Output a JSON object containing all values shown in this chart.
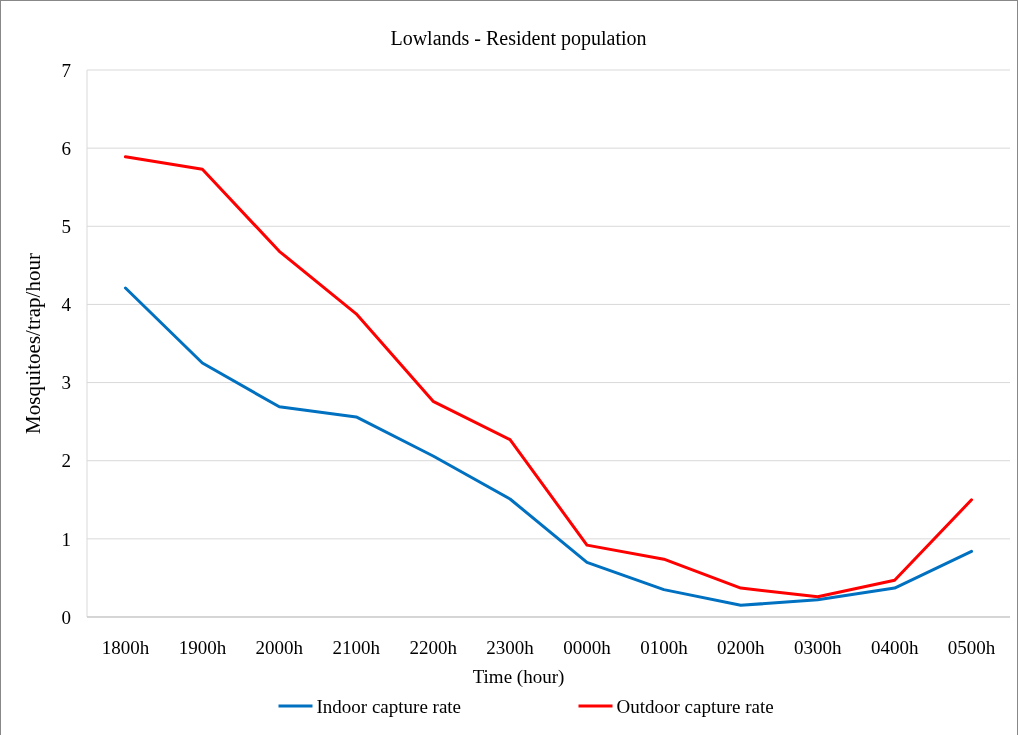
{
  "chart_data": {
    "type": "line",
    "title": "Lowlands - Resident population",
    "xlabel": "Time (hour)",
    "ylabel": "Mosquitoes/trap/hour",
    "categories": [
      "1800h",
      "1900h",
      "2000h",
      "2100h",
      "2200h",
      "2300h",
      "0000h",
      "0100h",
      "0200h",
      "0300h",
      "0400h",
      "0500h"
    ],
    "series": [
      {
        "name": "Indoor capture rate",
        "color": "#0070c0",
        "values": [
          4.21,
          3.25,
          2.69,
          2.56,
          2.06,
          1.51,
          0.7,
          0.35,
          0.15,
          0.22,
          0.37,
          0.84
        ]
      },
      {
        "name": "Outdoor capture rate",
        "color": "#ff0000",
        "values": [
          5.89,
          5.73,
          4.68,
          3.88,
          2.76,
          2.27,
          0.92,
          0.74,
          0.37,
          0.26,
          0.47,
          1.5
        ]
      }
    ],
    "ylim": [
      0,
      7
    ],
    "yticks": [
      0,
      1,
      2,
      3,
      4,
      5,
      6,
      7
    ],
    "grid": "y",
    "legend": "bottom",
    "marker": "none",
    "line_style": "solid"
  }
}
